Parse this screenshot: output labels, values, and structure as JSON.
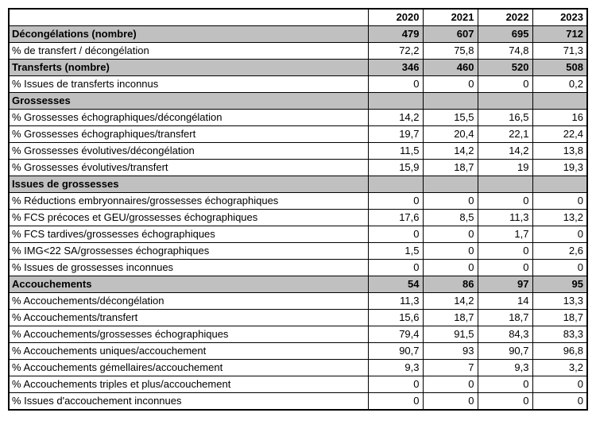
{
  "table": {
    "years": [
      "2020",
      "2021",
      "2022",
      "2023"
    ],
    "rows": [
      {
        "label": "Décongélations (nombre)",
        "values": [
          "479",
          "607",
          "695",
          "712"
        ],
        "section": true
      },
      {
        "label": "% de transfert / décongélation",
        "values": [
          "72,2",
          "75,8",
          "74,8",
          "71,3"
        ],
        "section": false
      },
      {
        "label": "Transferts (nombre)",
        "values": [
          "346",
          "460",
          "520",
          "508"
        ],
        "section": true
      },
      {
        "label": "% Issues de transferts inconnus",
        "values": [
          "0",
          "0",
          "0",
          "0,2"
        ],
        "section": false
      },
      {
        "label": "Grossesses",
        "values": [
          "",
          "",
          "",
          ""
        ],
        "section": true
      },
      {
        "label": "% Grossesses échographiques/décongélation",
        "values": [
          "14,2",
          "15,5",
          "16,5",
          "16"
        ],
        "section": false
      },
      {
        "label": "% Grossesses échographiques/transfert",
        "values": [
          "19,7",
          "20,4",
          "22,1",
          "22,4"
        ],
        "section": false
      },
      {
        "label": "% Grossesses évolutives/décongélation",
        "values": [
          "11,5",
          "14,2",
          "14,2",
          "13,8"
        ],
        "section": false
      },
      {
        "label": "% Grossesses évolutives/transfert",
        "values": [
          "15,9",
          "18,7",
          "19",
          "19,3"
        ],
        "section": false
      },
      {
        "label": "Issues de grossesses",
        "values": [
          "",
          "",
          "",
          ""
        ],
        "section": true
      },
      {
        "label": "% Réductions embryonnaires/grossesses échographiques",
        "values": [
          "0",
          "0",
          "0",
          "0"
        ],
        "section": false
      },
      {
        "label": "% FCS précoces et GEU/grossesses échographiques",
        "values": [
          "17,6",
          "8,5",
          "11,3",
          "13,2"
        ],
        "section": false
      },
      {
        "label": "% FCS tardives/grossesses échographiques",
        "values": [
          "0",
          "0",
          "1,7",
          "0"
        ],
        "section": false
      },
      {
        "label": "% IMG<22 SA/grossesses échographiques",
        "values": [
          "1,5",
          "0",
          "0",
          "2,6"
        ],
        "section": false
      },
      {
        "label": "% Issues de grossesses inconnues",
        "values": [
          "0",
          "0",
          "0",
          "0"
        ],
        "section": false
      },
      {
        "label": "Accouchements",
        "values": [
          "54",
          "86",
          "97",
          "95"
        ],
        "section": true
      },
      {
        "label": "% Accouchements/décongélation",
        "values": [
          "11,3",
          "14,2",
          "14",
          "13,3"
        ],
        "section": false
      },
      {
        "label": "% Accouchements/transfert",
        "values": [
          "15,6",
          "18,7",
          "18,7",
          "18,7"
        ],
        "section": false
      },
      {
        "label": "% Accouchements/grossesses échographiques",
        "values": [
          "79,4",
          "91,5",
          "84,3",
          "83,3"
        ],
        "section": false
      },
      {
        "label": "% Accouchements uniques/accouchement",
        "values": [
          "90,7",
          "93",
          "90,7",
          "96,8"
        ],
        "section": false
      },
      {
        "label": "% Accouchements gémellaires/accouchement",
        "values": [
          "9,3",
          "7",
          "9,3",
          "3,2"
        ],
        "section": false
      },
      {
        "label": "% Accouchements triples et plus/accouchement",
        "values": [
          "0",
          "0",
          "0",
          "0"
        ],
        "section": false
      },
      {
        "label": "% Issues d'accouchement inconnues",
        "values": [
          "0",
          "0",
          "0",
          "0"
        ],
        "section": false
      }
    ],
    "colors": {
      "section_bg": "#c0c0c0",
      "border": "#000000",
      "background": "#ffffff"
    }
  }
}
